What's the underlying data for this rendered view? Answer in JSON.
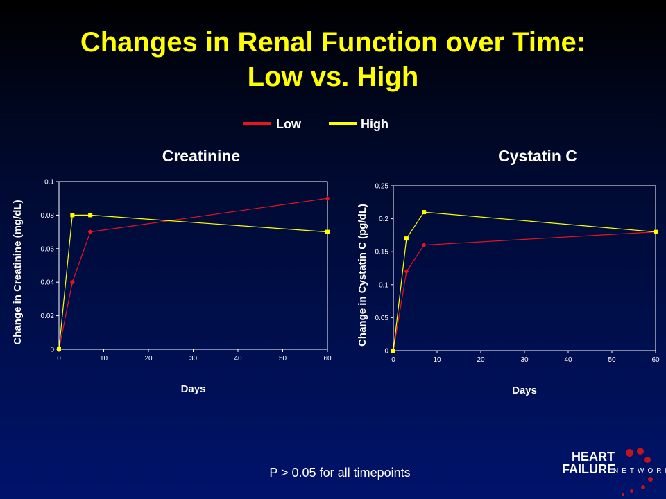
{
  "slide": {
    "title_line1": "Changes in Renal Function over Time:",
    "title_line2": "Low vs. High",
    "footnote": "P > 0.05 for all timepoints",
    "logo": {
      "line1": "HEART",
      "line2": "FAILURE",
      "line3": "NETWORK",
      "icon": "red-dots-logo-icon"
    }
  },
  "legend": [
    {
      "label": "Low",
      "color": "#e8141e"
    },
    {
      "label": "High",
      "color": "#ffff00"
    }
  ],
  "chart_data": [
    {
      "type": "line",
      "title": "Creatinine",
      "xlabel": "Days",
      "ylabel": "Change in Creatinine (mg/dL)",
      "xlim": [
        0,
        60
      ],
      "ylim": [
        0,
        0.1
      ],
      "xticks": [
        0,
        10,
        20,
        30,
        40,
        50,
        60
      ],
      "yticks": [
        0,
        0.02,
        0.04,
        0.06,
        0.08,
        0.1
      ],
      "grid": false,
      "series": [
        {
          "name": "Low",
          "color": "#e8141e",
          "x": [
            0,
            3,
            7,
            60
          ],
          "y": [
            0,
            0.04,
            0.07,
            0.09
          ]
        },
        {
          "name": "High",
          "color": "#ffff00",
          "x": [
            0,
            3,
            7,
            60
          ],
          "y": [
            0,
            0.08,
            0.08,
            0.07
          ]
        }
      ]
    },
    {
      "type": "line",
      "title": "Cystatin C",
      "xlabel": "Days",
      "ylabel": "Change in Cystatin C (pg/dL)",
      "xlim": [
        0,
        60
      ],
      "ylim": [
        0,
        0.25
      ],
      "xticks": [
        0,
        10,
        20,
        30,
        40,
        50,
        60
      ],
      "yticks": [
        0,
        0.05,
        0.1,
        0.15,
        0.2,
        0.25
      ],
      "grid": false,
      "series": [
        {
          "name": "Low",
          "color": "#e8141e",
          "x": [
            0,
            3,
            7,
            60
          ],
          "y": [
            0,
            0.12,
            0.16,
            0.18
          ]
        },
        {
          "name": "High",
          "color": "#ffff00",
          "x": [
            0,
            3,
            7,
            60
          ],
          "y": [
            0,
            0.17,
            0.21,
            0.18
          ]
        }
      ]
    }
  ]
}
